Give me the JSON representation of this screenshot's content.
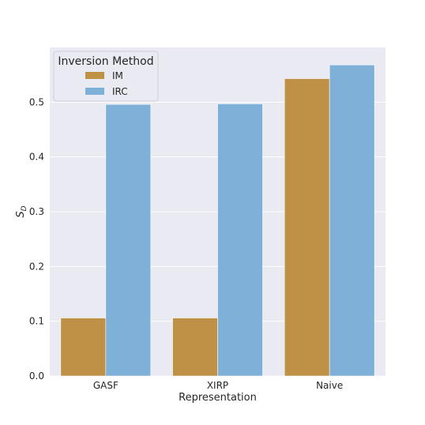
{
  "chart_data": {
    "type": "bar",
    "categories": [
      "GASF",
      "XIRP",
      "Naive"
    ],
    "series": [
      {
        "name": "IM",
        "values": [
          0.106,
          0.106,
          0.543
        ],
        "color": "#BE9147"
      },
      {
        "name": "IRC",
        "values": [
          0.496,
          0.497,
          0.568
        ],
        "color": "#7FB0D7"
      }
    ],
    "xlabel": "Representation",
    "ylabel": "S",
    "ylabel_subscript": "D",
    "ylim": [
      0,
      0.6
    ],
    "yticks": [
      "0.0",
      "0.1",
      "0.2",
      "0.3",
      "0.4",
      "0.5"
    ],
    "grid": true,
    "legend": {
      "title": "Inversion Method",
      "placement": "top-left"
    },
    "background": "#EAEAF2"
  }
}
